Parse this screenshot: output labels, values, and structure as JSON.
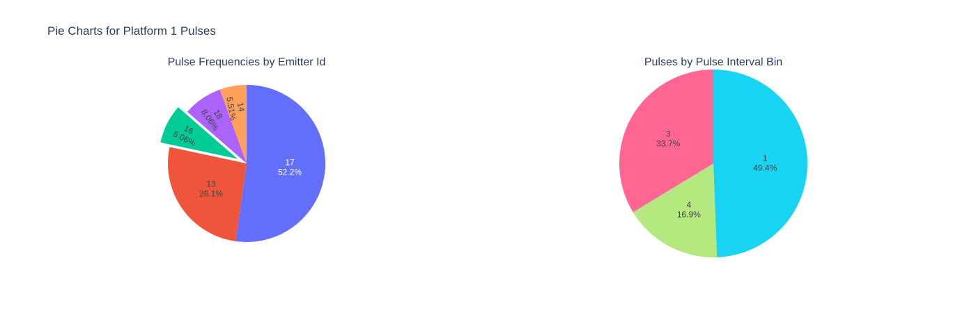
{
  "figure": {
    "title": "Pie Charts for Platform 1 Pulses"
  },
  "chart_data": [
    {
      "type": "pie",
      "title": "Pulse Frequencies by Emitter Id",
      "labels": [
        "17",
        "13",
        "16",
        "18",
        "14"
      ],
      "values": [
        52.2,
        26.1,
        8.06,
        8.06,
        5.51
      ],
      "percent_text": [
        "52.2%",
        "26.1%",
        "8.06%",
        "8.06%",
        "5.51%"
      ],
      "colors": [
        "#636efa",
        "#ef553b",
        "#00cc96",
        "#ab63fa",
        "#ffa15a"
      ],
      "pulled": [
        "16"
      ],
      "label_text_colors": [
        "#ffffff",
        "#444444",
        "#444444",
        "#444444",
        "#444444"
      ],
      "direction": "clockwise",
      "start": "top"
    },
    {
      "type": "pie",
      "title": "Pulses by Pulse Interval Bin",
      "labels": [
        "1",
        "4",
        "3"
      ],
      "values": [
        49.4,
        16.9,
        33.7
      ],
      "percent_text": [
        "49.4%",
        "16.9%",
        "33.7%"
      ],
      "colors": [
        "#19d3f3",
        "#b6e880",
        "#ff6692"
      ],
      "pulled": [],
      "label_text_colors": [
        "#444444",
        "#444444",
        "#444444"
      ],
      "direction": "clockwise",
      "start": "top"
    }
  ]
}
